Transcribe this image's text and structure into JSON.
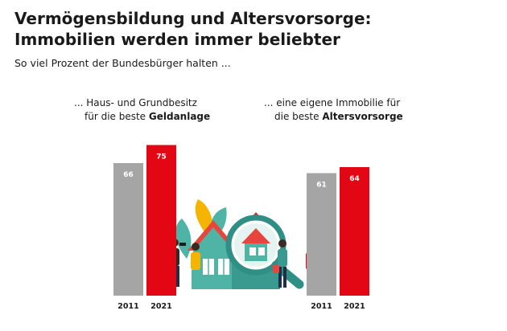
{
  "header": {
    "title_line1": "Vermögensbildung und Altersvorsorge:",
    "title_line2": "Immobilien werden immer beliebter",
    "subtitle": "So viel Prozent der Bundesbürger halten ..."
  },
  "captions": {
    "left_line1": "... Haus- und Grundbesitz",
    "left_line2_prefix": "für die beste ",
    "left_line2_bold": "Geldanlage",
    "right_line1": "... eine eigene Immobilie für",
    "right_line2_prefix": "die beste ",
    "right_line2_bold": "Altersvorsorge"
  },
  "chart_data": [
    {
      "type": "bar",
      "categories": [
        "2011",
        "2021"
      ],
      "series": [
        {
          "values": [
            66,
            75
          ]
        }
      ],
      "colors": [
        "#a5a5a5",
        "#e30613"
      ],
      "ylim": [
        0,
        100
      ]
    },
    {
      "type": "bar",
      "categories": [
        "2011",
        "2021"
      ],
      "series": [
        {
          "values": [
            61,
            64
          ]
        }
      ],
      "colors": [
        "#a5a5a5",
        "#e30613"
      ],
      "ylim": [
        0,
        100
      ]
    }
  ],
  "illustration": {
    "icon": "house-magnifier-people-illustration",
    "colors": {
      "roof": "#e8453c",
      "wall": "#4fb3a6",
      "lens": "#2f8f85",
      "leaf": "#4fb3a6",
      "accent": "#f4b400"
    }
  }
}
